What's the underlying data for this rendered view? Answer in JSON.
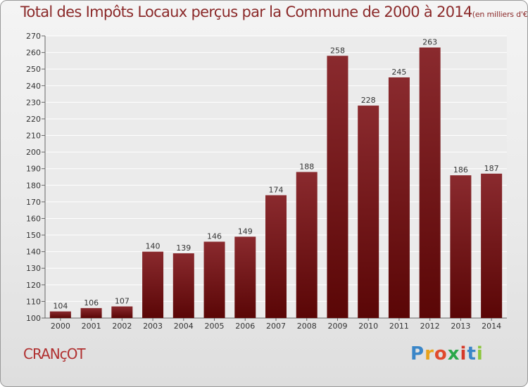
{
  "title": "Total des Impôts Locaux perçus par la Commune de 2000 à 2014",
  "title_unit": "(en milliers d'€)",
  "commune": "CRANçOT",
  "logo": {
    "letters": [
      "P",
      "r",
      "o",
      "x",
      "i",
      "t",
      "i"
    ],
    "colors": [
      "#3a86c8",
      "#e8a21a",
      "#e04a2c",
      "#2aa84a",
      "#d63a2a",
      "#3a86c8",
      "#8cc63f"
    ]
  },
  "chart_data": {
    "type": "bar",
    "categories": [
      "2000",
      "2001",
      "2002",
      "2003",
      "2004",
      "2005",
      "2006",
      "2007",
      "2008",
      "2009",
      "2010",
      "2011",
      "2012",
      "2013",
      "2014"
    ],
    "values": [
      104,
      106,
      107,
      140,
      139,
      146,
      149,
      174,
      188,
      258,
      228,
      245,
      263,
      186,
      187
    ],
    "ylim": [
      100,
      270
    ],
    "yticks": [
      100,
      110,
      120,
      130,
      140,
      150,
      160,
      170,
      180,
      190,
      200,
      210,
      220,
      230,
      240,
      250,
      260,
      270
    ],
    "bar_color": "#7a1a1c",
    "grid": true
  }
}
